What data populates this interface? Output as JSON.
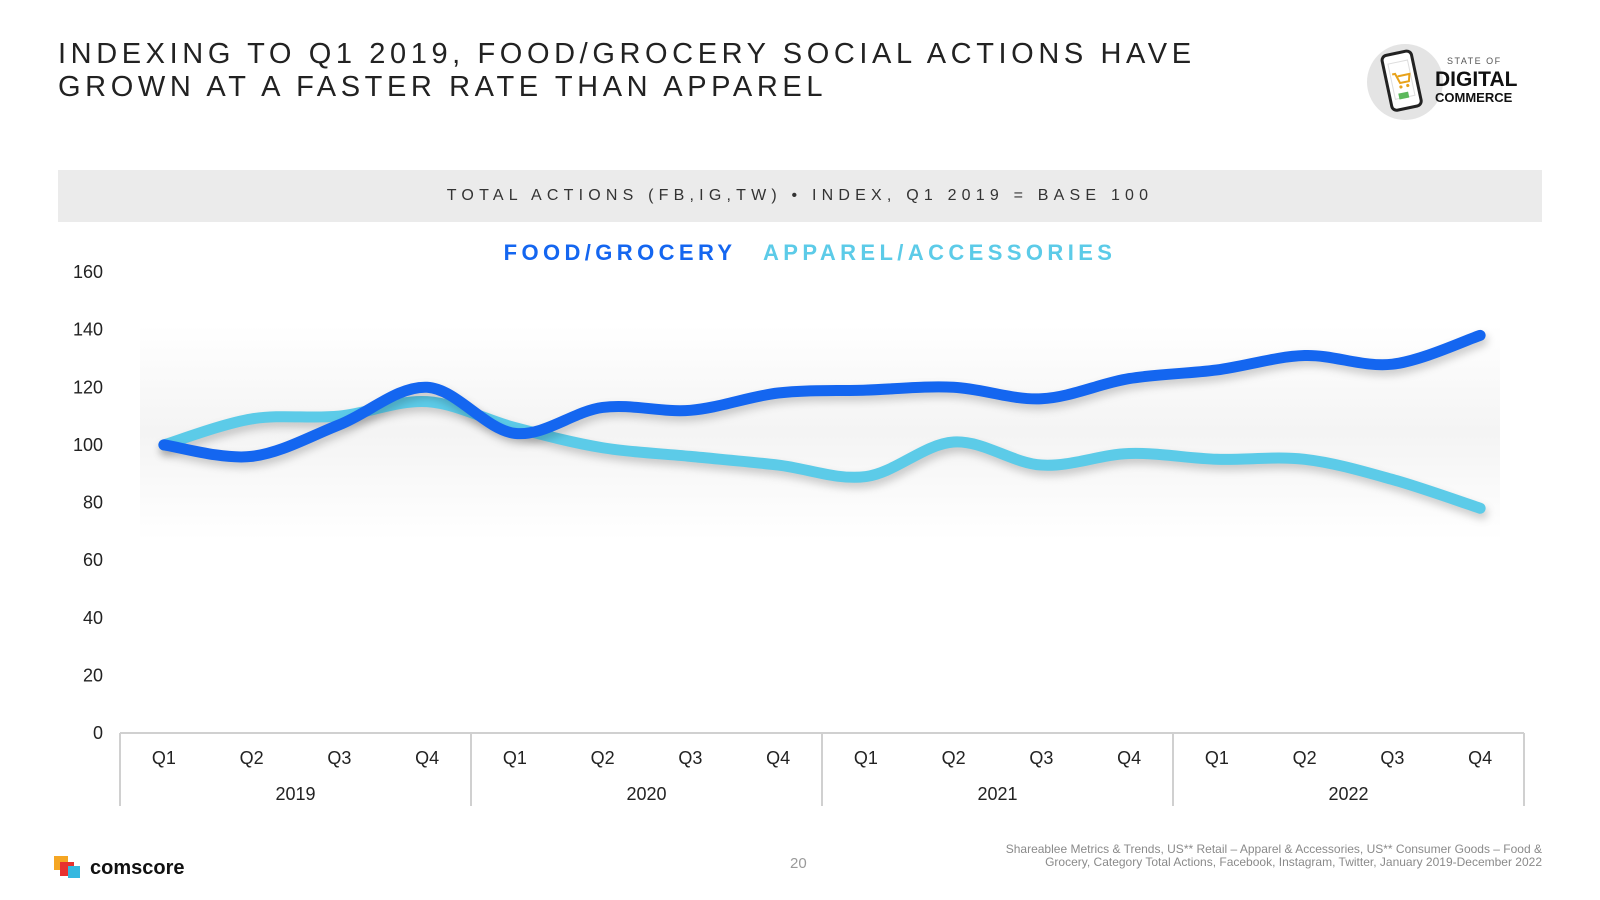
{
  "header": {
    "title_line1": "INDEXING TO Q1 2019, FOOD/GROCERY SOCIAL ACTIONS HAVE",
    "title_line2": "GROWN AT A FASTER RATE THAN APPAREL"
  },
  "logo": {
    "small_text": "STATE OF",
    "line1": "DIGITAL",
    "line2": "COMMERCE"
  },
  "subtitle": "TOTAL ACTIONS (FB,IG,TW) • INDEX, Q1 2019 = BASE 100",
  "colors": {
    "food": "#1466f0",
    "apparel": "#5ccbe8",
    "axis": "#d0d0d0"
  },
  "chart_data": {
    "type": "line",
    "title": "TOTAL ACTIONS (FB,IG,TW) • INDEX, Q1 2019 = BASE 100",
    "categories": [
      "Q1",
      "Q2",
      "Q3",
      "Q4",
      "Q1",
      "Q2",
      "Q3",
      "Q4",
      "Q1",
      "Q2",
      "Q3",
      "Q4",
      "Q1",
      "Q2",
      "Q3",
      "Q4"
    ],
    "groups": [
      {
        "label": "2019",
        "count": 4
      },
      {
        "label": "2020",
        "count": 4
      },
      {
        "label": "2021",
        "count": 4
      },
      {
        "label": "2022",
        "count": 4
      }
    ],
    "series": [
      {
        "name": "FOOD/GROCERY",
        "values": [
          100,
          96,
          107,
          120,
          104,
          113,
          112,
          118,
          119,
          120,
          116,
          123,
          126,
          131,
          128,
          138
        ]
      },
      {
        "name": "APPAREL/ACCESSORIES",
        "values": [
          100,
          109,
          110,
          115,
          106,
          99,
          96,
          93,
          89,
          101,
          93,
          97,
          95,
          95,
          88,
          78
        ]
      }
    ],
    "yticks": [
      0,
      20,
      40,
      60,
      80,
      100,
      120,
      140,
      160
    ],
    "ylim": [
      0,
      160
    ],
    "xlabel": "",
    "ylabel": "",
    "grid": false,
    "legend_position": "top-center"
  },
  "footer": {
    "brand": "comscore",
    "page_number": "20",
    "source_line1": "Shareablee Metrics & Trends, US** Retail – Apparel & Accessories, US** Consumer Goods – Food &",
    "source_line2": "Grocery, Category Total Actions, Facebook, Instagram, Twitter, January 2019-December 2022"
  }
}
